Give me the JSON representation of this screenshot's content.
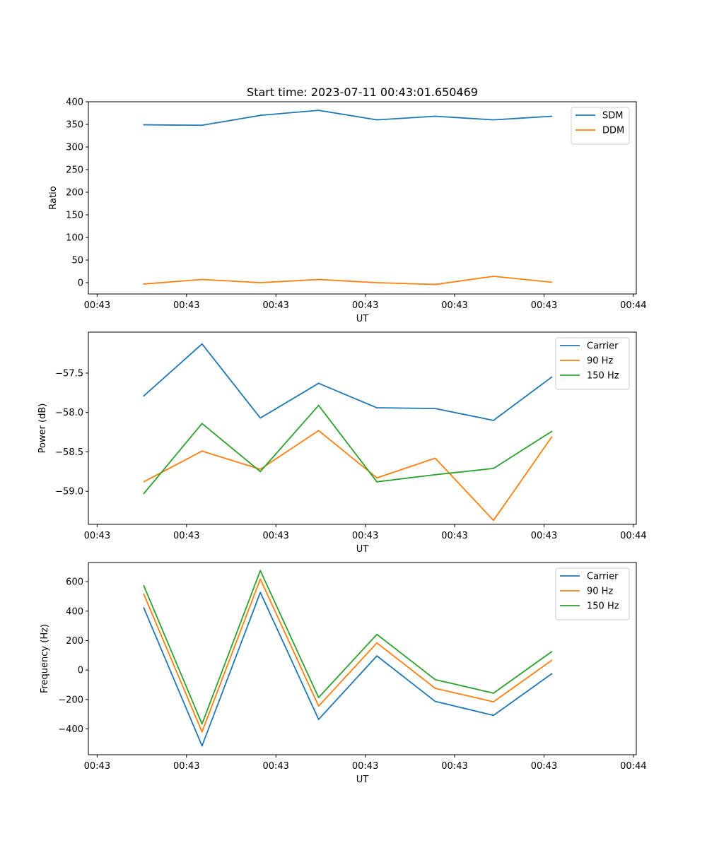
{
  "figure": {
    "title": "Start time: 2023-07-11 00:43:01.650469"
  },
  "colors": {
    "blue": "#1f77b4",
    "orange": "#ff7f0e",
    "green": "#2ca02c"
  },
  "chart_data": [
    {
      "type": "line",
      "title": "Start time: 2023-07-11 00:43:01.650469",
      "xlabel": "UT",
      "ylabel": "Ratio",
      "x": [
        1,
        2,
        3,
        4,
        5,
        6,
        7,
        8
      ],
      "xlim": [
        0.05,
        9.45
      ],
      "xticks": [
        0.2,
        1.733,
        3.267,
        4.8,
        6.333,
        7.867,
        9.4
      ],
      "xtick_labels": [
        "00:43",
        "00:43",
        "00:43",
        "00:43",
        "00:43",
        "00:43",
        "00:44"
      ],
      "ylim": [
        -25,
        400
      ],
      "yticks": [
        0,
        50,
        100,
        150,
        200,
        250,
        300,
        350,
        400
      ],
      "ytick_labels": [
        "0",
        "50",
        "100",
        "150",
        "200",
        "250",
        "300",
        "350",
        "400"
      ],
      "legend_position": "top-right",
      "series": [
        {
          "name": "SDM",
          "color": "blue",
          "values": [
            349,
            348,
            370,
            381,
            360,
            368,
            360,
            368
          ]
        },
        {
          "name": "DDM",
          "color": "orange",
          "values": [
            -3,
            7,
            0,
            7,
            0,
            -4,
            14,
            1
          ]
        }
      ]
    },
    {
      "type": "line",
      "title": "",
      "xlabel": "UT",
      "ylabel": "Power (dB)",
      "x": [
        1,
        2,
        3,
        4,
        5,
        6,
        7,
        8
      ],
      "xlim": [
        0.05,
        9.45
      ],
      "xticks": [
        0.2,
        1.733,
        3.267,
        4.8,
        6.333,
        7.867,
        9.4
      ],
      "xtick_labels": [
        "00:43",
        "00:43",
        "00:43",
        "00:43",
        "00:43",
        "00:43",
        "00:44"
      ],
      "ylim": [
        -59.42,
        -56.98
      ],
      "yticks": [
        -59.0,
        -58.5,
        -58.0,
        -57.5
      ],
      "ytick_labels": [
        "−59.0",
        "−58.5",
        "−58.0",
        "−57.5"
      ],
      "legend_position": "top-right",
      "series": [
        {
          "name": "Carrier",
          "color": "blue",
          "values": [
            -57.79,
            -57.13,
            -58.07,
            -57.63,
            -57.94,
            -57.95,
            -58.1,
            -57.55
          ]
        },
        {
          "name": "90 Hz",
          "color": "orange",
          "values": [
            -58.88,
            -58.49,
            -58.72,
            -58.23,
            -58.83,
            -58.58,
            -59.37,
            -58.31
          ]
        },
        {
          "name": "150 Hz",
          "color": "green",
          "values": [
            -59.03,
            -58.14,
            -58.75,
            -57.91,
            -58.88,
            -58.79,
            -58.71,
            -58.24
          ]
        }
      ]
    },
    {
      "type": "line",
      "title": "",
      "xlabel": "UT",
      "ylabel": "Frequency (Hz)",
      "x": [
        1,
        2,
        3,
        4,
        5,
        6,
        7,
        8
      ],
      "xlim": [
        0.05,
        9.45
      ],
      "xticks": [
        0.2,
        1.733,
        3.267,
        4.8,
        6.333,
        7.867,
        9.4
      ],
      "xtick_labels": [
        "00:43",
        "00:43",
        "00:43",
        "00:43",
        "00:43",
        "00:43",
        "00:44"
      ],
      "ylim": [
        -575,
        730
      ],
      "yticks": [
        -400,
        -200,
        0,
        200,
        400,
        600
      ],
      "ytick_labels": [
        "−400",
        "−200",
        "0",
        "200",
        "400",
        "600"
      ],
      "legend_position": "top-right",
      "series": [
        {
          "name": "Carrier",
          "color": "blue",
          "values": [
            423,
            -515,
            527,
            -335,
            96,
            -213,
            -308,
            -25
          ]
        },
        {
          "name": "90 Hz",
          "color": "orange",
          "values": [
            516,
            -420,
            618,
            -245,
            184,
            -124,
            -216,
            66
          ]
        },
        {
          "name": "150 Hz",
          "color": "green",
          "values": [
            573,
            -366,
            675,
            -187,
            242,
            -65,
            -157,
            125
          ]
        }
      ]
    }
  ]
}
